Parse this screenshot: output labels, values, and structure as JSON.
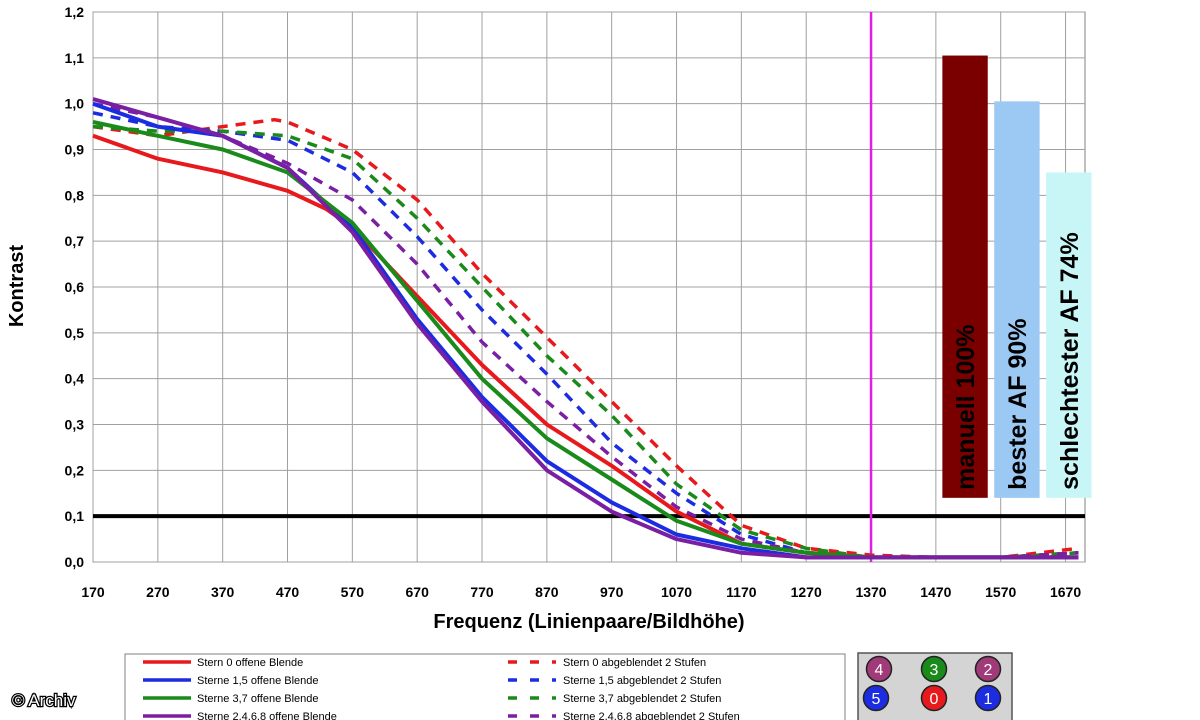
{
  "chart_data": {
    "type": "line",
    "title": "",
    "xlabel": "Frequenz (Linienpaare/Bildhöhe)",
    "ylabel": "Kontrast",
    "xlim": [
      170,
      1700
    ],
    "ylim": [
      0,
      1.2
    ],
    "x_ticks": [
      "170",
      "270",
      "370",
      "470",
      "570",
      "670",
      "770",
      "870",
      "970",
      "1070",
      "1170",
      "1270",
      "1370",
      "1470",
      "1570",
      "1670"
    ],
    "y_ticks": [
      "0,0",
      "0,1",
      "0,2",
      "0,3",
      "0,4",
      "0,5",
      "0,6",
      "0,7",
      "0,8",
      "0,9",
      "1,0",
      "1,1",
      "1,2"
    ],
    "grid": true,
    "reference_line_y": 0.1,
    "marker_line_x": 1370,
    "series": [
      {
        "name": "Stern 0 offene Blende",
        "color": "#e8191c",
        "style": "solid",
        "x": [
          170,
          270,
          370,
          470,
          530,
          570,
          670,
          770,
          870,
          970,
          1070,
          1170,
          1270,
          1370,
          1470,
          1570,
          1690
        ],
        "y": [
          0.93,
          0.88,
          0.85,
          0.81,
          0.77,
          0.73,
          0.58,
          0.43,
          0.3,
          0.21,
          0.11,
          0.04,
          0.02,
          0.01,
          0.01,
          0.01,
          0.01
        ]
      },
      {
        "name": "Sterne 1,5 offene Blende",
        "color": "#1c2ce0",
        "style": "solid",
        "x": [
          170,
          270,
          370,
          470,
          570,
          670,
          770,
          870,
          970,
          1070,
          1170,
          1270,
          1370,
          1470,
          1570,
          1690
        ],
        "y": [
          1.0,
          0.95,
          0.93,
          0.86,
          0.73,
          0.53,
          0.36,
          0.22,
          0.13,
          0.06,
          0.03,
          0.01,
          0.01,
          0.01,
          0.01,
          0.01
        ]
      },
      {
        "name": "Sterne 3,7 offene Blende",
        "color": "#1a8a1a",
        "style": "solid",
        "x": [
          170,
          270,
          370,
          470,
          570,
          670,
          770,
          870,
          970,
          1070,
          1170,
          1270,
          1370,
          1470,
          1570,
          1690
        ],
        "y": [
          0.96,
          0.93,
          0.9,
          0.85,
          0.74,
          0.57,
          0.4,
          0.27,
          0.18,
          0.09,
          0.04,
          0.02,
          0.01,
          0.01,
          0.01,
          0.01
        ]
      },
      {
        "name": "Sterne 2,4,6,8 offene Blende",
        "color": "#7a1fa3",
        "style": "solid",
        "x": [
          170,
          270,
          370,
          470,
          570,
          670,
          770,
          870,
          970,
          1070,
          1170,
          1270,
          1370,
          1470,
          1570,
          1690
        ],
        "y": [
          1.01,
          0.97,
          0.93,
          0.86,
          0.72,
          0.52,
          0.35,
          0.2,
          0.11,
          0.05,
          0.02,
          0.01,
          0.01,
          0.01,
          0.01,
          0.01
        ]
      },
      {
        "name": "Stern 0 abgeblendet 2 Stufen",
        "color": "#e8191c",
        "style": "dashed",
        "x": [
          170,
          270,
          370,
          450,
          470,
          570,
          670,
          770,
          870,
          970,
          1070,
          1170,
          1270,
          1370,
          1470,
          1570,
          1690
        ],
        "y": [
          0.95,
          0.93,
          0.95,
          0.965,
          0.96,
          0.9,
          0.79,
          0.63,
          0.49,
          0.35,
          0.21,
          0.08,
          0.03,
          0.015,
          0.01,
          0.01,
          0.03
        ]
      },
      {
        "name": "Sterne 1,5 abgeblendet 2 Stufen",
        "color": "#1c2ce0",
        "style": "dashed",
        "x": [
          170,
          270,
          370,
          470,
          570,
          670,
          770,
          870,
          970,
          1070,
          1170,
          1270,
          1370,
          1470,
          1570,
          1690
        ],
        "y": [
          0.98,
          0.95,
          0.94,
          0.92,
          0.85,
          0.71,
          0.55,
          0.41,
          0.26,
          0.15,
          0.06,
          0.02,
          0.01,
          0.01,
          0.01,
          0.02
        ]
      },
      {
        "name": "Sterne 3,7 abgeblendet 2 Stufen",
        "color": "#1a8a1a",
        "style": "dashed",
        "x": [
          170,
          270,
          370,
          470,
          570,
          670,
          770,
          870,
          970,
          1070,
          1170,
          1270,
          1370,
          1470,
          1570,
          1690
        ],
        "y": [
          0.95,
          0.94,
          0.94,
          0.93,
          0.88,
          0.75,
          0.6,
          0.45,
          0.32,
          0.17,
          0.07,
          0.03,
          0.01,
          0.01,
          0.01,
          0.02
        ]
      },
      {
        "name": "Sterne 2,4,6,8 abgeblendet 2 Stufen",
        "color": "#7a1fa3",
        "style": "dashed",
        "x": [
          170,
          270,
          370,
          470,
          570,
          670,
          770,
          870,
          970,
          1070,
          1170,
          1270,
          1370,
          1470,
          1570,
          1690
        ],
        "y": [
          1.0,
          0.97,
          0.93,
          0.87,
          0.79,
          0.65,
          0.48,
          0.35,
          0.23,
          0.12,
          0.05,
          0.02,
          0.01,
          0.01,
          0.01,
          0.02
        ]
      }
    ],
    "bars": [
      {
        "label": "manuell 100%",
        "value": 1.105,
        "x_range": [
          1480,
          1550
        ],
        "color": "#7a0000",
        "text_color": "#ffffff"
      },
      {
        "label": "bester AF 90%",
        "value": 1.005,
        "x_range": [
          1560,
          1630
        ],
        "color": "#9cc8f4",
        "text_color": "#000000"
      },
      {
        "label": "schlechtester AF 74%",
        "value": 0.85,
        "x_range": [
          1640,
          1710
        ],
        "color": "#c8f6f6",
        "text_color": "#000000"
      }
    ],
    "bar_base": 0.14,
    "focus_dots": [
      {
        "label": "4",
        "color": "#a03a78"
      },
      {
        "label": "3",
        "color": "#1a8a1a"
      },
      {
        "label": "2",
        "color": "#a03a78"
      },
      {
        "label": "5",
        "color": "#1c2ce0"
      },
      {
        "label": "0",
        "color": "#e8191c"
      },
      {
        "label": "1",
        "color": "#1c2ce0"
      }
    ]
  },
  "credit": "© Archiv"
}
